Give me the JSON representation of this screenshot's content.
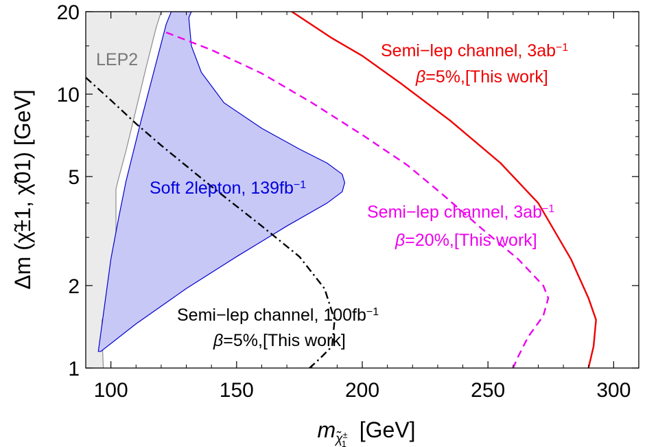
{
  "chart_data": {
    "type": "area",
    "x_axis": {
      "range": [
        90,
        310
      ],
      "ticks": [
        100,
        150,
        200,
        250,
        300
      ],
      "scale": "linear"
    },
    "y_axis": {
      "range": [
        1,
        20
      ],
      "ticks": [
        1,
        2,
        5,
        10,
        20
      ],
      "scale": "log"
    },
    "xlabel": {
      "base": "m",
      "sub": "χ̃",
      "subsup": "±",
      "subsub": "1",
      "unit": "[GeV]"
    },
    "ylabel": "Δm (χ̃±1, χ̃01) [GeV]",
    "regions": [
      {
        "name": "LEP2",
        "color": "#ebebeb",
        "edge_color": "#8c8c8c",
        "boundary": [
          [
            98,
            20
          ],
          [
            88,
            20
          ],
          [
            88,
            1
          ],
          [
            97,
            1
          ],
          [
            96.5,
            1.3
          ],
          [
            96.5,
            1.5
          ],
          [
            98,
            1.58
          ],
          [
            101,
            1.7
          ],
          [
            101.5,
            2.0
          ],
          [
            102,
            3.0
          ],
          [
            102,
            4.5
          ],
          [
            103,
            4.9
          ],
          [
            106,
            6.2
          ],
          [
            110,
            8.8
          ],
          [
            114,
            12.5
          ],
          [
            118,
            17.5
          ],
          [
            120,
            20
          ]
        ]
      },
      {
        "name": "Soft 2lepton",
        "color": "#c8c8f7",
        "edge_color": "#0000cc",
        "boundary": [
          [
            95,
            1.15
          ],
          [
            100,
            2.5
          ],
          [
            103,
            3.5
          ],
          [
            106,
            4.8
          ],
          [
            112,
            8.0
          ],
          [
            117,
            12.0
          ],
          [
            122,
            18.0
          ],
          [
            124,
            20
          ],
          [
            132,
            20
          ],
          [
            131,
            19
          ],
          [
            132,
            15
          ],
          [
            136,
            12
          ],
          [
            145,
            9.3
          ],
          [
            160,
            7.5
          ],
          [
            175,
            6.3
          ],
          [
            186,
            5.6
          ],
          [
            192,
            5.1
          ],
          [
            193,
            4.75
          ],
          [
            192,
            4.4
          ],
          [
            186,
            4.0
          ],
          [
            170,
            3.3
          ],
          [
            150,
            2.55
          ],
          [
            130,
            1.95
          ],
          [
            110,
            1.45
          ],
          [
            96,
            1.15
          ]
        ]
      }
    ],
    "series": [
      {
        "name": "Semi-lep channel, 3ab⁻¹ β=5%",
        "style": "solid",
        "color": "#ee0000",
        "points": [
          [
            172,
            20
          ],
          [
            188,
            16
          ],
          [
            200,
            13.8
          ],
          [
            215,
            11
          ],
          [
            235,
            8
          ],
          [
            255,
            5.6
          ],
          [
            270,
            4
          ],
          [
            283,
            2.5
          ],
          [
            290,
            1.8
          ],
          [
            293,
            1.5
          ],
          [
            292,
            1.2
          ],
          [
            290,
            1.0
          ]
        ]
      },
      {
        "name": "Semi-lep channel, 3ab⁻¹ β=20%",
        "style": "dashed",
        "color": "#ee00ee",
        "points": [
          [
            122,
            16.8
          ],
          [
            140,
            14.5
          ],
          [
            160,
            11.9
          ],
          [
            180,
            9.3
          ],
          [
            200,
            7.1
          ],
          [
            218,
            5.5
          ],
          [
            232,
            4.3
          ],
          [
            248,
            3.2
          ],
          [
            262,
            2.5
          ],
          [
            272,
            2.0
          ],
          [
            274,
            1.8
          ],
          [
            272,
            1.55
          ],
          [
            266,
            1.3
          ],
          [
            262,
            1.1
          ],
          [
            260,
            1.0
          ]
        ]
      },
      {
        "name": "Semi-lep channel, 100fb⁻¹ β=5%",
        "style": "dashdot",
        "color": "#000000",
        "points": [
          [
            90,
            11.5
          ],
          [
            100,
            9.5
          ],
          [
            110,
            7.8
          ],
          [
            120,
            6.5
          ],
          [
            140,
            4.6
          ],
          [
            160,
            3.3
          ],
          [
            175,
            2.55
          ],
          [
            185,
            1.95
          ],
          [
            189,
            1.5
          ],
          [
            188,
            1.2
          ],
          [
            183,
            1.08
          ],
          [
            179,
            1.0
          ]
        ]
      }
    ],
    "annotations": [
      {
        "text": "LEP2",
        "color": "#777777"
      },
      {
        "text": "Soft 2lepton, 139fb",
        "sup": "−1",
        "color": "#0000dd"
      },
      {
        "text": "Semi−lep channel, 3ab",
        "sup": "−1",
        "color": "#ee0000"
      },
      {
        "text": "β=5%,[This work]",
        "color": "#ee0000"
      },
      {
        "text": "Semi−lep channel, 3ab",
        "sup": "−1",
        "color": "#ee00ee"
      },
      {
        "text": "β=20%,[This work]",
        "color": "#ee00ee"
      },
      {
        "text": "Semi−lep channel, 100fb",
        "sup": "−1",
        "color": "#000000"
      },
      {
        "text": "β=5%,[This work]",
        "color": "#000000"
      }
    ]
  }
}
